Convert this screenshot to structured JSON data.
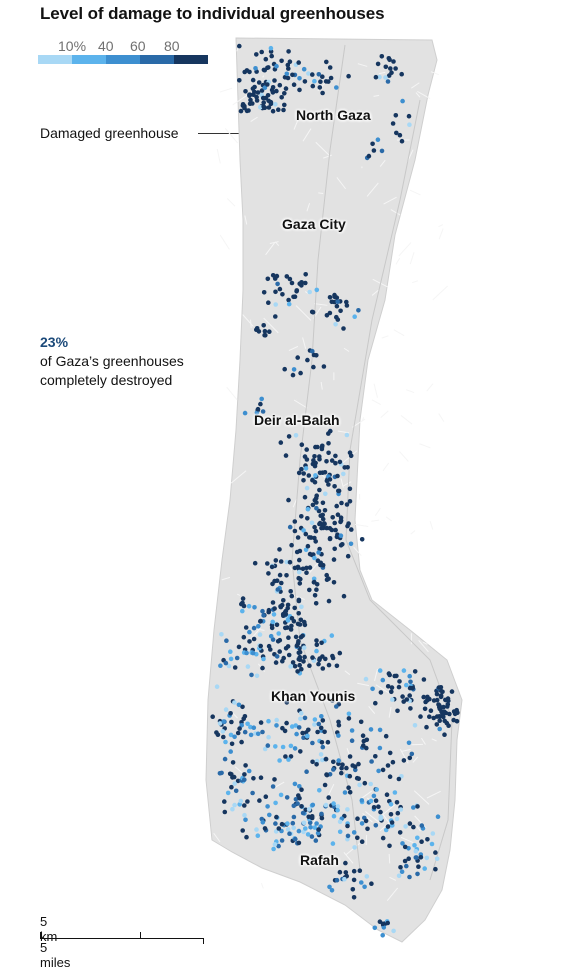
{
  "title": "Level of damage to individual greenhouses",
  "legend": {
    "labels": [
      "10%",
      "40",
      "60",
      "80"
    ],
    "colors": [
      "#a8d8f5",
      "#5cb3ec",
      "#3d8fd0",
      "#2a6aa8",
      "#16365f"
    ]
  },
  "annotation": "Damaged greenhouse",
  "stat": {
    "value": "23%",
    "line1": "of Gaza’s greenhouses",
    "line2": "completely destroyed"
  },
  "places": [
    "North Gaza",
    "Gaza City",
    "Deir al-Balah",
    "Khan Younis",
    "Rafah"
  ],
  "scale": {
    "km": "5 km",
    "miles": "5 miles"
  },
  "colors": {
    "land": "#e2e2e2",
    "outline": "#cfcfcf",
    "road": "#c4c4c4"
  }
}
